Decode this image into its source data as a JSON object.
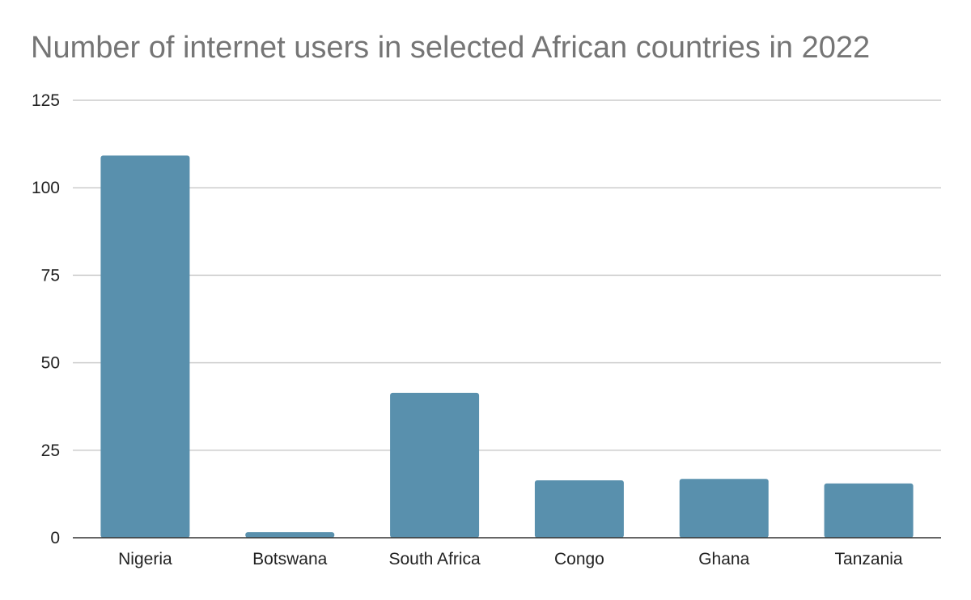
{
  "chart_data": {
    "type": "bar",
    "title": "Number of internet users in selected African countries in 2022",
    "xlabel": "",
    "ylabel": "",
    "categories": [
      "Nigeria",
      "Botswana",
      "South Africa",
      "Congo",
      "Ghana",
      "Tanzania"
    ],
    "values": [
      109.2,
      1.6,
      41.4,
      16.4,
      16.8,
      15.5
    ],
    "ylim": [
      0,
      125
    ],
    "yticks": [
      0,
      25,
      50,
      75,
      100,
      125
    ],
    "grid": true,
    "legend": "none"
  },
  "colors": {
    "bar": "#5990ad",
    "grid": "#cccccc",
    "axis": "#333333",
    "title": "#757575"
  }
}
